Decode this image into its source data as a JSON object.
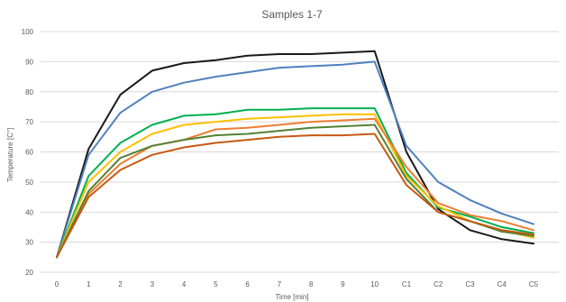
{
  "chart_data": {
    "type": "line",
    "title": "Samples 1-7",
    "xlabel": "Time [min]",
    "ylabel": "Temperature [C°]",
    "categories": [
      "0",
      "1",
      "2",
      "3",
      "4",
      "5",
      "6",
      "7",
      "8",
      "9",
      "10",
      "C1",
      "C2",
      "C3",
      "C4",
      "C5"
    ],
    "yticks": [
      20,
      30,
      40,
      50,
      60,
      70,
      80,
      90,
      100
    ],
    "ylim": [
      20,
      100
    ],
    "grid": true,
    "legend": "none",
    "series": [
      {
        "color": "#1a1a1a",
        "values": [
          25,
          61,
          79,
          87,
          89.5,
          90.5,
          92,
          92.5,
          92.5,
          93,
          93.5,
          60,
          41,
          34,
          31,
          29.5
        ]
      },
      {
        "color": "#4f81bd",
        "values": [
          25,
          59,
          73,
          80,
          83,
          85,
          86.5,
          88,
          88.5,
          89,
          90,
          62,
          50,
          44,
          39.5,
          36
        ]
      },
      {
        "color": "#00b050",
        "values": [
          25,
          52,
          63,
          69,
          72,
          72.5,
          74,
          74,
          74.5,
          74.5,
          74.5,
          53,
          41.5,
          38.5,
          35,
          33
        ]
      },
      {
        "color": "#ffc000",
        "values": [
          25,
          50,
          60,
          66,
          69,
          70,
          71,
          71.5,
          72,
          72.5,
          72.5,
          52,
          42,
          37,
          34,
          31.5
        ]
      },
      {
        "color": "#ed7d31",
        "values": [
          25,
          46,
          56,
          62,
          64,
          67.5,
          68,
          69,
          70,
          70.5,
          71,
          55,
          43,
          39,
          37,
          34
        ]
      },
      {
        "color": "#548235",
        "values": [
          25,
          47,
          58,
          62,
          64,
          65.5,
          66,
          67,
          68,
          68.5,
          69,
          51,
          40,
          37,
          33.5,
          32
        ]
      },
      {
        "color": "#c55a11",
        "values": [
          25,
          45,
          54,
          59,
          61.5,
          63,
          64,
          65,
          65.5,
          65.5,
          66,
          49,
          40,
          37,
          34,
          32.5
        ]
      }
    ]
  }
}
